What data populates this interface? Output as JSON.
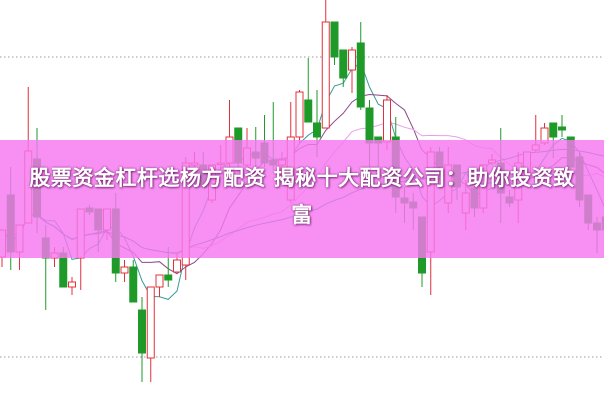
{
  "headline": "股票资金杠杆选杨方配资 揭秘十大配资公司：助你投资致富",
  "colors": {
    "up": "#e0303a",
    "down": "#1f9a28",
    "banner": "#f678f0",
    "ma_short": "#3a9a9a",
    "ma_mid": "#8a4a8a",
    "ma_long": "#e9a0e9",
    "ma_trend": "#2f8f8f",
    "grid": "#999999"
  },
  "chart_data": {
    "type": "candlestick",
    "title": "",
    "xlabel": "",
    "ylabel": "",
    "grid": true,
    "grid_lines": [
      4.4,
      34.4
    ],
    "ylim": [
      0,
      40.1
    ],
    "moving_averages": [
      5,
      10,
      20,
      40
    ],
    "candles": [
      [
        14.4,
        17.1,
        17.1,
        13.4
      ],
      [
        20.6,
        14.9,
        23.4,
        13.1
      ],
      [
        14.9,
        17.6,
        17.6,
        13.1
      ],
      [
        17.8,
        25.0,
        31.4,
        17.8
      ],
      [
        24.2,
        18.4,
        27.3,
        16.8
      ],
      [
        16.3,
        14.3,
        17.6,
        9.1
      ],
      [
        14.3,
        14.8,
        15.4,
        13.4
      ],
      [
        14.8,
        11.4,
        15.4,
        11.4
      ],
      [
        11.4,
        11.9,
        12.4,
        10.6
      ],
      [
        14.3,
        19.2,
        19.2,
        11.1
      ],
      [
        19.3,
        18.9,
        19.6,
        18.6
      ],
      [
        19.2,
        17.1,
        19.2,
        14.9
      ],
      [
        17.1,
        19.2,
        19.2,
        16.1
      ],
      [
        19.2,
        12.8,
        20.8,
        11.9
      ],
      [
        12.8,
        13.4,
        14.1,
        11.9
      ],
      [
        13.4,
        9.9,
        14.1,
        9.9
      ],
      [
        9.1,
        4.8,
        10.4,
        1.9
      ],
      [
        4.3,
        11.4,
        11.4,
        1.9
      ],
      [
        11.4,
        12.6,
        12.6,
        10.4
      ],
      [
        12.6,
        12.1,
        15.4,
        11.4
      ],
      [
        12.9,
        14.1,
        14.8,
        12.9
      ],
      [
        13.6,
        23.8,
        24.4,
        12.1
      ],
      [
        23.6,
        23.8,
        24.9,
        23.4
      ],
      [
        23.6,
        21.4,
        24.9,
        21.4
      ],
      [
        20.1,
        23.6,
        23.6,
        19.8
      ],
      [
        23.7,
        23.8,
        25.6,
        22.8
      ],
      [
        23.8,
        26.4,
        30.1,
        23.4
      ],
      [
        27.3,
        23.8,
        27.3,
        23.4
      ],
      [
        23.6,
        25.3,
        27.3,
        23.4
      ],
      [
        24.9,
        24.3,
        27.4,
        23.4
      ],
      [
        25.8,
        23.8,
        28.6,
        23.4
      ],
      [
        24.1,
        23.6,
        29.9,
        23.1
      ],
      [
        23.6,
        24.1,
        24.9,
        22.8
      ],
      [
        20.1,
        26.4,
        29.9,
        19.8
      ],
      [
        26.4,
        30.9,
        31.1,
        25.8
      ],
      [
        30.1,
        27.9,
        34.3,
        27.9
      ],
      [
        27.8,
        26.4,
        31.1,
        24.4
      ],
      [
        27.3,
        37.9,
        40.1,
        27.3
      ],
      [
        37.9,
        34.4,
        37.9,
        33.6
      ],
      [
        35.1,
        32.3,
        35.1,
        31.4
      ],
      [
        33.1,
        35.1,
        35.4,
        30.8
      ],
      [
        35.8,
        29.4,
        37.9,
        29.1
      ],
      [
        29.3,
        25.8,
        30.1,
        23.4
      ],
      [
        26.4,
        25.8,
        26.4,
        23.4
      ],
      [
        25.9,
        30.1,
        30.6,
        25.1
      ],
      [
        26.4,
        20.4,
        28.4,
        18.8
      ],
      [
        20.3,
        19.8,
        21.4,
        17.8
      ],
      [
        19.9,
        19.3,
        20.8,
        17.1
      ],
      [
        18.4,
        12.8,
        18.4,
        11.4
      ],
      [
        14.9,
        24.9,
        25.4,
        10.6
      ],
      [
        24.9,
        23.4,
        25.4,
        22.1
      ],
      [
        19.8,
        23.6,
        25.4,
        18.8
      ],
      [
        23.6,
        21.4,
        23.6,
        20.1
      ],
      [
        18.8,
        20.8,
        22.1,
        17.1
      ],
      [
        21.3,
        19.3,
        22.1,
        18.4
      ],
      [
        19.3,
        23.6,
        23.6,
        18.8
      ],
      [
        23.8,
        24.1,
        24.7,
        23.6
      ],
      [
        23.8,
        20.8,
        27.3,
        17.8
      ],
      [
        20.4,
        19.8,
        21.1,
        19.4
      ],
      [
        20.1,
        23.8,
        24.9,
        17.8
      ],
      [
        22.8,
        24.9,
        24.9,
        22.8
      ],
      [
        25.1,
        25.6,
        28.6,
        24.9
      ],
      [
        25.8,
        27.3,
        27.8,
        25.6
      ],
      [
        27.8,
        26.4,
        27.8,
        24.3
      ],
      [
        27.4,
        27.1,
        28.6,
        26.4
      ],
      [
        26.4,
        23.4,
        26.4,
        23.1
      ],
      [
        24.4,
        20.1,
        24.9,
        19.4
      ],
      [
        20.6,
        17.8,
        20.6,
        17.1
      ],
      [
        17.8,
        17.1,
        18.4,
        14.8
      ],
      [
        18.4,
        17.1,
        19.0,
        14.0
      ]
    ]
  }
}
